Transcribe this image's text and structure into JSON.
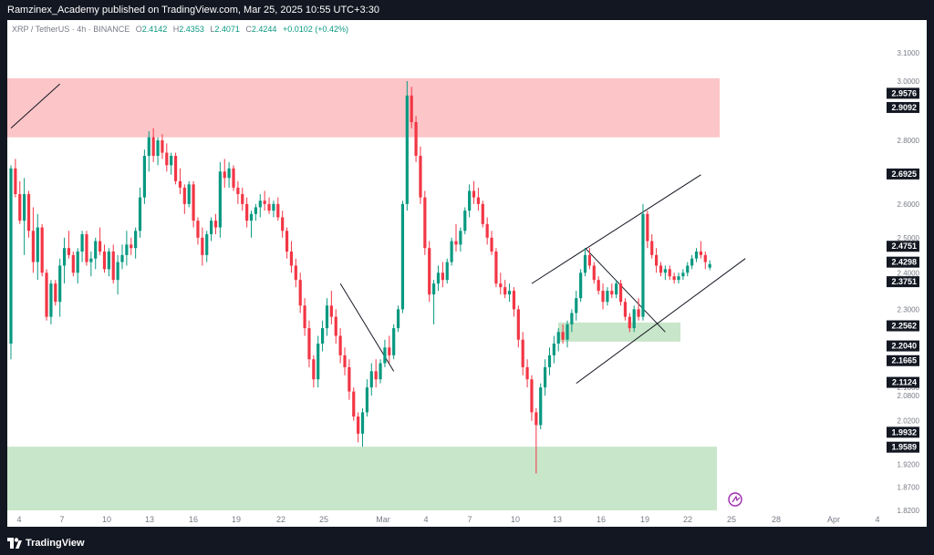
{
  "header": {
    "publisher_line": "Ramzinex_Academy published on TradingView.com, Mar 25, 2025 10:55 UTC+3:30"
  },
  "legend": {
    "symbol": "XRP / TetherUS · 4h · BINANCE",
    "open_key": "O",
    "open": "2.4142",
    "high_key": "H",
    "high": "2.4353",
    "low_key": "L",
    "low": "2.4071",
    "close_key": "C",
    "close": "2.4244",
    "change": "+0.0102 (+0.42%)"
  },
  "footer": {
    "brand": "TradingView"
  },
  "colors": {
    "up": "#089981",
    "down": "#f23645",
    "resistance_zone": "#fcc5c7",
    "support_zone": "#c8e6c9",
    "frame": "#131722"
  },
  "chart_data": {
    "type": "candlestick",
    "symbol": "XRP / TetherUS",
    "interval": "4h",
    "exchange": "BINANCE",
    "y_scale": "log",
    "ylim": [
      1.82,
      3.16
    ],
    "x_tick_labels": [
      "4",
      "7",
      "10",
      "13",
      "16",
      "19",
      "22",
      "25",
      "Mar",
      "4",
      "7",
      "10",
      "13",
      "16",
      "19",
      "22",
      "25",
      "28",
      "Apr",
      "4"
    ],
    "y_tick_labels": [
      "3.1000",
      "3.0000",
      "2.8000",
      "2.6000",
      "2.5000",
      "2.4000",
      "2.3000",
      "2.2000",
      "2.1000",
      "2.0800",
      "2.0200",
      "1.9200",
      "1.8700",
      "1.8200"
    ],
    "price_labels": [
      "2.9576",
      "2.9092",
      "2.6925",
      "2.4751",
      "2.4298",
      "2.3751",
      "2.2562",
      "2.2040",
      "2.1665",
      "2.1124",
      "1.9932",
      "1.9589"
    ],
    "zones": [
      {
        "kind": "resistance",
        "top": 3.01,
        "bottom": 2.81
      },
      {
        "kind": "resistance_small",
        "top": 2.265,
        "bottom": 2.215
      },
      {
        "kind": "support",
        "top": 1.96,
        "bottom": 1.82
      }
    ],
    "trendlines": [
      {
        "from": [
          0,
          2.84
        ],
        "to": [
          11,
          2.99
        ]
      },
      {
        "from": [
          74,
          2.37
        ],
        "to": [
          86,
          2.14
        ]
      },
      {
        "from": [
          117,
          2.37
        ],
        "to": [
          155,
          2.69
        ]
      },
      {
        "from": [
          127,
          2.11
        ],
        "to": [
          165,
          2.44
        ]
      },
      {
        "from": [
          129,
          2.47
        ],
        "to": [
          147,
          2.24
        ]
      }
    ],
    "candles": [
      [
        2.21,
        2.72,
        2.17,
        2.71
      ],
      [
        2.71,
        2.74,
        2.62,
        2.63
      ],
      [
        2.63,
        2.67,
        2.54,
        2.55
      ],
      [
        2.55,
        2.68,
        2.45,
        2.63
      ],
      [
        2.63,
        2.64,
        2.5,
        2.52
      ],
      [
        2.52,
        2.59,
        2.4,
        2.43
      ],
      [
        2.43,
        2.57,
        2.38,
        2.53
      ],
      [
        2.53,
        2.54,
        2.39,
        2.4
      ],
      [
        2.4,
        2.41,
        2.27,
        2.28
      ],
      [
        2.28,
        2.38,
        2.26,
        2.37
      ],
      [
        2.37,
        2.38,
        2.31,
        2.32
      ],
      [
        2.32,
        2.44,
        2.28,
        2.42
      ],
      [
        2.42,
        2.5,
        2.37,
        2.47
      ],
      [
        2.47,
        2.52,
        2.44,
        2.45
      ],
      [
        2.45,
        2.46,
        2.39,
        2.4
      ],
      [
        2.4,
        2.47,
        2.37,
        2.46
      ],
      [
        2.46,
        2.52,
        2.43,
        2.51
      ],
      [
        2.51,
        2.52,
        2.42,
        2.43
      ],
      [
        2.43,
        2.46,
        2.39,
        2.44
      ],
      [
        2.44,
        2.5,
        2.41,
        2.49
      ],
      [
        2.49,
        2.53,
        2.45,
        2.46
      ],
      [
        2.46,
        2.48,
        2.4,
        2.41
      ],
      [
        2.41,
        2.47,
        2.39,
        2.46
      ],
      [
        2.46,
        2.48,
        2.37,
        2.38
      ],
      [
        2.38,
        2.45,
        2.34,
        2.43
      ],
      [
        2.43,
        2.48,
        2.41,
        2.45
      ],
      [
        2.45,
        2.52,
        2.42,
        2.48
      ],
      [
        2.48,
        2.5,
        2.45,
        2.47
      ],
      [
        2.47,
        2.53,
        2.44,
        2.52
      ],
      [
        2.52,
        2.65,
        2.5,
        2.62
      ],
      [
        2.62,
        2.77,
        2.6,
        2.75
      ],
      [
        2.75,
        2.83,
        2.7,
        2.81
      ],
      [
        2.81,
        2.84,
        2.73,
        2.75
      ],
      [
        2.75,
        2.81,
        2.72,
        2.8
      ],
      [
        2.8,
        2.82,
        2.74,
        2.76
      ],
      [
        2.76,
        2.79,
        2.7,
        2.72
      ],
      [
        2.72,
        2.76,
        2.69,
        2.75
      ],
      [
        2.75,
        2.76,
        2.66,
        2.67
      ],
      [
        2.67,
        2.71,
        2.63,
        2.65
      ],
      [
        2.65,
        2.66,
        2.57,
        2.6
      ],
      [
        2.6,
        2.67,
        2.59,
        2.66
      ],
      [
        2.66,
        2.67,
        2.53,
        2.55
      ],
      [
        2.55,
        2.56,
        2.48,
        2.5
      ],
      [
        2.5,
        2.53,
        2.42,
        2.45
      ],
      [
        2.45,
        2.52,
        2.43,
        2.51
      ],
      [
        2.51,
        2.56,
        2.49,
        2.55
      ],
      [
        2.55,
        2.57,
        2.51,
        2.53
      ],
      [
        2.53,
        2.73,
        2.5,
        2.7
      ],
      [
        2.7,
        2.74,
        2.65,
        2.68
      ],
      [
        2.68,
        2.73,
        2.65,
        2.71
      ],
      [
        2.71,
        2.72,
        2.64,
        2.65
      ],
      [
        2.65,
        2.67,
        2.6,
        2.63
      ],
      [
        2.63,
        2.65,
        2.58,
        2.6
      ],
      [
        2.6,
        2.62,
        2.53,
        2.55
      ],
      [
        2.55,
        2.58,
        2.5,
        2.57
      ],
      [
        2.57,
        2.6,
        2.55,
        2.59
      ],
      [
        2.59,
        2.63,
        2.56,
        2.61
      ],
      [
        2.61,
        2.64,
        2.58,
        2.6
      ],
      [
        2.6,
        2.62,
        2.57,
        2.58
      ],
      [
        2.58,
        2.61,
        2.56,
        2.6
      ],
      [
        2.6,
        2.62,
        2.55,
        2.56
      ],
      [
        2.56,
        2.58,
        2.5,
        2.52
      ],
      [
        2.52,
        2.53,
        2.44,
        2.46
      ],
      [
        2.46,
        2.49,
        2.4,
        2.42
      ],
      [
        2.42,
        2.44,
        2.36,
        2.38
      ],
      [
        2.38,
        2.4,
        2.29,
        2.31
      ],
      [
        2.31,
        2.33,
        2.23,
        2.25
      ],
      [
        2.25,
        2.27,
        2.15,
        2.17
      ],
      [
        2.17,
        2.18,
        2.1,
        2.12
      ],
      [
        2.12,
        2.23,
        2.1,
        2.21
      ],
      [
        2.21,
        2.27,
        2.19,
        2.25
      ],
      [
        2.25,
        2.33,
        2.23,
        2.31
      ],
      [
        2.31,
        2.35,
        2.26,
        2.28
      ],
      [
        2.28,
        2.3,
        2.21,
        2.23
      ],
      [
        2.23,
        2.25,
        2.16,
        2.18
      ],
      [
        2.18,
        2.2,
        2.13,
        2.15
      ],
      [
        2.15,
        2.17,
        2.07,
        2.09
      ],
      [
        2.09,
        2.1,
        2.02,
        2.03
      ],
      [
        2.03,
        2.04,
        1.97,
        1.99
      ],
      [
        1.99,
        2.05,
        1.96,
        2.04
      ],
      [
        2.04,
        2.12,
        2.03,
        2.1
      ],
      [
        2.1,
        2.16,
        2.08,
        2.14
      ],
      [
        2.14,
        2.17,
        2.1,
        2.12
      ],
      [
        2.12,
        2.17,
        2.11,
        2.16
      ],
      [
        2.16,
        2.22,
        2.15,
        2.2
      ],
      [
        2.2,
        2.23,
        2.16,
        2.18
      ],
      [
        2.18,
        2.26,
        2.17,
        2.25
      ],
      [
        2.25,
        2.31,
        2.24,
        2.3
      ],
      [
        2.3,
        2.61,
        2.29,
        2.6
      ],
      [
        2.6,
        3.0,
        2.58,
        2.95
      ],
      [
        2.95,
        2.98,
        2.84,
        2.86
      ],
      [
        2.86,
        2.88,
        2.73,
        2.75
      ],
      [
        2.75,
        2.78,
        2.6,
        2.62
      ],
      [
        2.62,
        2.64,
        2.45,
        2.47
      ],
      [
        2.47,
        2.49,
        2.32,
        2.34
      ],
      [
        2.34,
        2.38,
        2.26,
        2.37
      ],
      [
        2.37,
        2.42,
        2.35,
        2.4
      ],
      [
        2.4,
        2.43,
        2.36,
        2.38
      ],
      [
        2.38,
        2.44,
        2.37,
        2.43
      ],
      [
        2.43,
        2.5,
        2.42,
        2.49
      ],
      [
        2.49,
        2.54,
        2.46,
        2.48
      ],
      [
        2.48,
        2.53,
        2.46,
        2.52
      ],
      [
        2.52,
        2.59,
        2.51,
        2.58
      ],
      [
        2.58,
        2.66,
        2.56,
        2.64
      ],
      [
        2.64,
        2.67,
        2.6,
        2.62
      ],
      [
        2.62,
        2.65,
        2.58,
        2.6
      ],
      [
        2.6,
        2.61,
        2.53,
        2.54
      ],
      [
        2.54,
        2.56,
        2.48,
        2.5
      ],
      [
        2.5,
        2.52,
        2.45,
        2.46
      ],
      [
        2.46,
        2.47,
        2.36,
        2.37
      ],
      [
        2.37,
        2.4,
        2.34,
        2.36
      ],
      [
        2.36,
        2.38,
        2.33,
        2.34
      ],
      [
        2.34,
        2.37,
        2.32,
        2.35
      ],
      [
        2.35,
        2.36,
        2.28,
        2.3
      ],
      [
        2.3,
        2.31,
        2.2,
        2.22
      ],
      [
        2.22,
        2.24,
        2.13,
        2.15
      ],
      [
        2.15,
        2.17,
        2.1,
        2.12
      ],
      [
        2.12,
        2.13,
        2.02,
        2.04
      ],
      [
        2.04,
        2.05,
        1.9,
        2.01
      ],
      [
        2.01,
        2.11,
        2.0,
        2.1
      ],
      [
        2.1,
        2.17,
        2.08,
        2.15
      ],
      [
        2.15,
        2.2,
        2.13,
        2.18
      ],
      [
        2.18,
        2.23,
        2.16,
        2.21
      ],
      [
        2.21,
        2.25,
        2.19,
        2.24
      ],
      [
        2.24,
        2.26,
        2.21,
        2.22
      ],
      [
        2.22,
        2.27,
        2.2,
        2.26
      ],
      [
        2.26,
        2.3,
        2.24,
        2.29
      ],
      [
        2.29,
        2.35,
        2.27,
        2.33
      ],
      [
        2.33,
        2.41,
        2.32,
        2.4
      ],
      [
        2.4,
        2.47,
        2.39,
        2.45
      ],
      [
        2.45,
        2.47,
        2.41,
        2.42
      ],
      [
        2.42,
        2.43,
        2.37,
        2.38
      ],
      [
        2.38,
        2.39,
        2.34,
        2.35
      ],
      [
        2.35,
        2.37,
        2.3,
        2.32
      ],
      [
        2.32,
        2.36,
        2.31,
        2.35
      ],
      [
        2.35,
        2.37,
        2.33,
        2.34
      ],
      [
        2.34,
        2.38,
        2.33,
        2.37
      ],
      [
        2.37,
        2.38,
        2.31,
        2.32
      ],
      [
        2.32,
        2.33,
        2.27,
        2.28
      ],
      [
        2.28,
        2.29,
        2.24,
        2.25
      ],
      [
        2.25,
        2.31,
        2.24,
        2.3
      ],
      [
        2.3,
        2.33,
        2.27,
        2.28
      ],
      [
        2.28,
        2.6,
        2.27,
        2.57
      ],
      [
        2.57,
        2.58,
        2.47,
        2.49
      ],
      [
        2.49,
        2.51,
        2.44,
        2.45
      ],
      [
        2.45,
        2.47,
        2.4,
        2.42
      ],
      [
        2.42,
        2.43,
        2.39,
        2.4
      ],
      [
        2.4,
        2.42,
        2.38,
        2.41
      ],
      [
        2.41,
        2.42,
        2.38,
        2.39
      ],
      [
        2.39,
        2.4,
        2.37,
        2.38
      ],
      [
        2.38,
        2.4,
        2.37,
        2.39
      ],
      [
        2.39,
        2.41,
        2.38,
        2.4
      ],
      [
        2.4,
        2.43,
        2.39,
        2.42
      ],
      [
        2.42,
        2.45,
        2.41,
        2.44
      ],
      [
        2.44,
        2.47,
        2.43,
        2.46
      ],
      [
        2.46,
        2.49,
        2.44,
        2.45
      ],
      [
        2.45,
        2.46,
        2.41,
        2.43
      ],
      [
        2.4142,
        2.4353,
        2.4071,
        2.4244
      ]
    ]
  }
}
